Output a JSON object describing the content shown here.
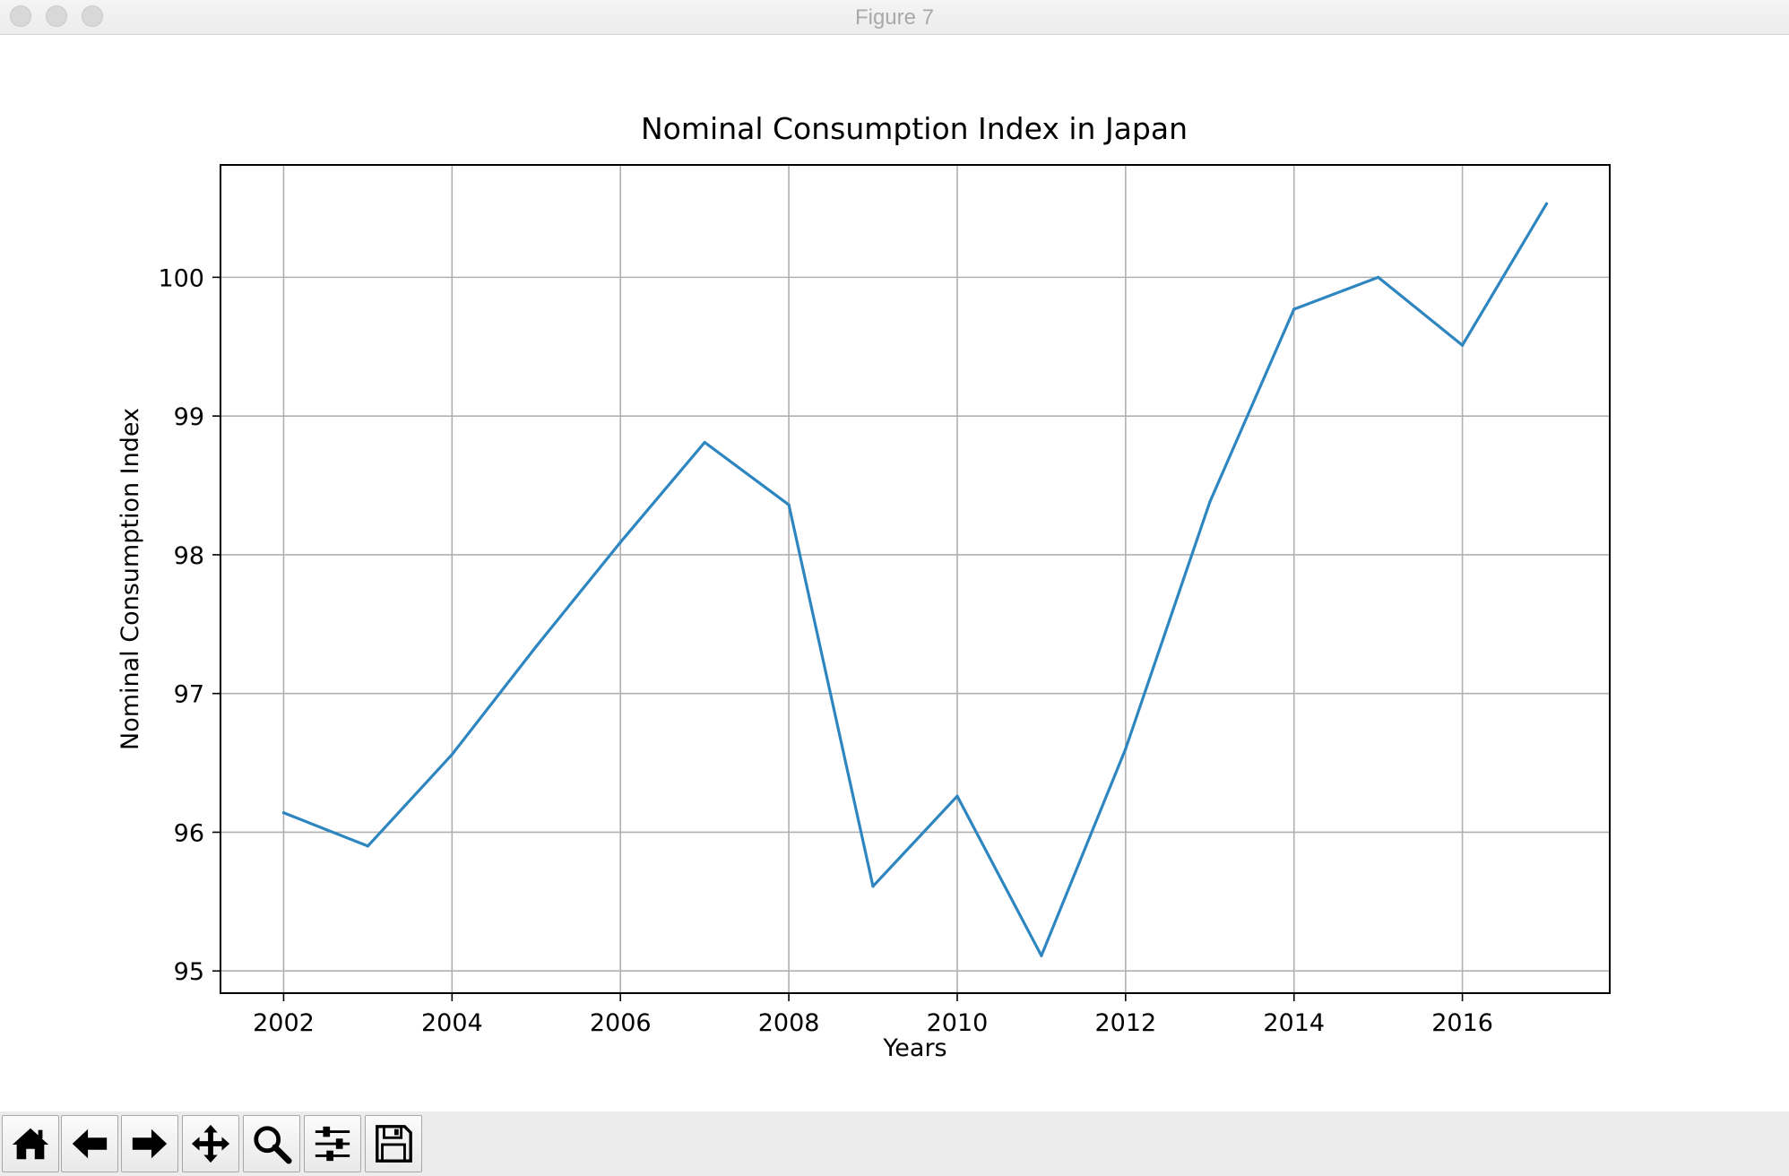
{
  "window": {
    "title": "Figure 7"
  },
  "toolbar": {
    "buttons": [
      {
        "name": "home",
        "icon": "home-icon"
      },
      {
        "name": "back",
        "icon": "arrow-left-icon"
      },
      {
        "name": "forward",
        "icon": "arrow-right-icon"
      },
      {
        "name": "pan",
        "icon": "move-icon"
      },
      {
        "name": "zoom",
        "icon": "magnifier-icon"
      },
      {
        "name": "configure-subplots",
        "icon": "sliders-icon"
      },
      {
        "name": "save",
        "icon": "floppy-disk-icon"
      }
    ]
  },
  "colors": {
    "line": "#2e86c1",
    "grid": "#b0b0b0",
    "axes": "#000000"
  },
  "chart_data": {
    "type": "line",
    "title": "Nominal Consumption Index in Japan",
    "xlabel": "Years",
    "ylabel": "Nominal Consumption Index",
    "x": [
      2002,
      2003,
      2004,
      2005,
      2006,
      2007,
      2008,
      2009,
      2010,
      2011,
      2012,
      2013,
      2014,
      2015,
      2016,
      2017
    ],
    "series": [
      {
        "values": [
          96.14,
          95.9,
          96.56,
          97.34,
          98.09,
          98.81,
          98.36,
          95.61,
          96.26,
          95.11,
          96.6,
          98.38,
          99.77,
          100.0,
          99.51,
          100.53
        ]
      }
    ],
    "xticks": [
      2002,
      2004,
      2006,
      2008,
      2010,
      2012,
      2014,
      2016
    ],
    "xtick_labels": [
      "2002",
      "2004",
      "2006",
      "2008",
      "2010",
      "2012",
      "2014",
      "2016"
    ],
    "yticks": [
      95,
      96,
      97,
      98,
      99,
      100
    ],
    "ytick_labels": [
      "95",
      "96",
      "97",
      "98",
      "99",
      "100"
    ],
    "xlim": [
      2001.25,
      2017.75
    ],
    "ylim": [
      94.84,
      100.81
    ],
    "grid": true,
    "legend": "none"
  }
}
